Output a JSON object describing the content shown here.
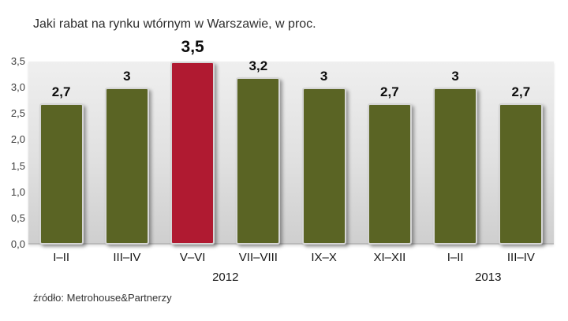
{
  "title": "Jaki rabat na rynku wtórnym w Warszawie, w proc.",
  "source": "źródło: Metrohouse&Partnerzy",
  "chart_data": {
    "type": "bar",
    "categories": [
      "I–II",
      "III–IV",
      "V–VI",
      "VII–VIII",
      "IX–X",
      "XI–XII",
      "I–II",
      "III–IV"
    ],
    "values": [
      2.7,
      3,
      3.5,
      3.2,
      3,
      2.7,
      3,
      2.7
    ],
    "value_labels": [
      "2,7",
      "3",
      "3,5",
      "3,2",
      "3",
      "2,7",
      "3",
      "2,7"
    ],
    "highlighted_index": 2,
    "title": "Jaki rabat na rynku wtórnym w Warszawie, w proc.",
    "xlabel": "",
    "ylabel": "",
    "ylim": [
      0,
      3.5
    ],
    "yticks": [
      0,
      0.5,
      1,
      1.5,
      2,
      2.5,
      3,
      3.5
    ],
    "ytick_labels": [
      "0,0",
      "0,5",
      "1,0",
      "1,5",
      "2,0",
      "2,5",
      "3,0",
      "3,5"
    ],
    "year_groups": [
      {
        "label": "2012",
        "from": 0,
        "to": 5
      },
      {
        "label": "2013",
        "from": 6,
        "to": 7
      }
    ],
    "bar_color": "#5a6424",
    "highlight_color": "#b01a31",
    "grid": false,
    "legend": false
  }
}
